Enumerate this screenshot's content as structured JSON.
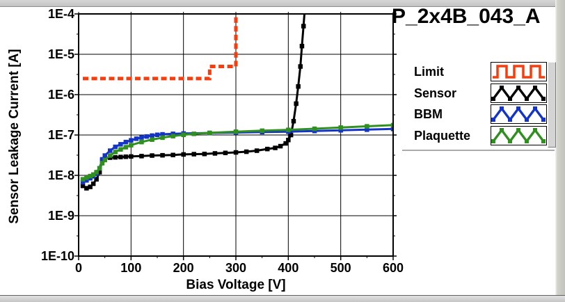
{
  "title": "P_2x4B_043_A",
  "chart_data": {
    "type": "line",
    "title": "P_2x4B_043_A",
    "xlabel": "Bias Voltage [V]",
    "ylabel": "Sensor Leakage Current [A]",
    "xlim": [
      0,
      600
    ],
    "ylog_exponents": [
      -4,
      -10
    ],
    "x_ticks": [
      "0",
      "100",
      "200",
      "300",
      "400",
      "500",
      "600"
    ],
    "y_ticks": [
      "1E-4",
      "1E-5",
      "1E-6",
      "1E-7",
      "1E-8",
      "1E-9",
      "1E-10"
    ],
    "grid": true,
    "legend_position": "right",
    "series": [
      {
        "name": "Limit",
        "color": "#f93c0c",
        "style": "dashed-step",
        "points": [
          [
            8,
            2.5e-06
          ],
          [
            250,
            2.5e-06
          ],
          [
            250,
            5e-06
          ],
          [
            300,
            5e-06
          ],
          [
            300,
            0.00011
          ]
        ]
      },
      {
        "name": "Sensor",
        "color": "#000000",
        "style": "marker-line",
        "points": [
          [
            8,
            5.5e-09
          ],
          [
            15,
            4.8e-09
          ],
          [
            22,
            5.2e-09
          ],
          [
            28,
            6.2e-09
          ],
          [
            34,
            8e-09
          ],
          [
            40,
            1.2e-08
          ],
          [
            45,
            2.3e-08
          ],
          [
            50,
            2.6e-08
          ],
          [
            60,
            2.75e-08
          ],
          [
            70,
            2.8e-08
          ],
          [
            80,
            2.85e-08
          ],
          [
            90,
            2.9e-08
          ],
          [
            100,
            2.95e-08
          ],
          [
            120,
            3e-08
          ],
          [
            140,
            3.1e-08
          ],
          [
            160,
            3.15e-08
          ],
          [
            180,
            3.2e-08
          ],
          [
            200,
            3.3e-08
          ],
          [
            220,
            3.35e-08
          ],
          [
            240,
            3.4e-08
          ],
          [
            260,
            3.5e-08
          ],
          [
            280,
            3.6e-08
          ],
          [
            300,
            3.7e-08
          ],
          [
            320,
            3.85e-08
          ],
          [
            340,
            4.1e-08
          ],
          [
            360,
            4.5e-08
          ],
          [
            375,
            4.8e-08
          ],
          [
            385,
            5.3e-08
          ],
          [
            395,
            6.2e-08
          ],
          [
            400,
            7.5e-08
          ],
          [
            405,
            1e-07
          ],
          [
            410,
            2.2e-07
          ],
          [
            415,
            6e-07
          ],
          [
            419,
            1.6e-06
          ],
          [
            423,
            5e-06
          ],
          [
            426,
            1.6e-05
          ],
          [
            429,
            5e-05
          ],
          [
            431,
            0.00011
          ]
        ]
      },
      {
        "name": "BBM",
        "color": "#1434c8",
        "style": "marker-line",
        "points": [
          [
            8,
            6.8e-09
          ],
          [
            15,
            7.5e-09
          ],
          [
            22,
            8.5e-09
          ],
          [
            28,
            9.5e-09
          ],
          [
            34,
            1.1e-08
          ],
          [
            40,
            1.5e-08
          ],
          [
            45,
            2.5e-08
          ],
          [
            50,
            3.1e-08
          ],
          [
            60,
            4.1e-08
          ],
          [
            70,
            5.1e-08
          ],
          [
            80,
            5.9e-08
          ],
          [
            90,
            6.7e-08
          ],
          [
            100,
            7.4e-08
          ],
          [
            110,
            8.1e-08
          ],
          [
            120,
            8.7e-08
          ],
          [
            130,
            9.2e-08
          ],
          [
            140,
            9.7e-08
          ],
          [
            150,
            1.01e-07
          ],
          [
            160,
            1.04e-07
          ],
          [
            180,
            1.07e-07
          ],
          [
            200,
            1.09e-07
          ],
          [
            250,
            1.12e-07
          ],
          [
            300,
            1.15e-07
          ],
          [
            350,
            1.18e-07
          ],
          [
            400,
            1.21e-07
          ],
          [
            450,
            1.26e-07
          ],
          [
            500,
            1.31e-07
          ],
          [
            550,
            1.36e-07
          ],
          [
            600,
            1.41e-07
          ]
        ]
      },
      {
        "name": "Plaquette",
        "color": "#2f8f1f",
        "style": "marker-line",
        "points": [
          [
            8,
            8e-09
          ],
          [
            15,
            8.8e-09
          ],
          [
            22,
            9.6e-09
          ],
          [
            28,
            1.05e-08
          ],
          [
            34,
            1.2e-08
          ],
          [
            40,
            1.5e-08
          ],
          [
            45,
            2e-08
          ],
          [
            50,
            2.4e-08
          ],
          [
            60,
            3.1e-08
          ],
          [
            70,
            3.8e-08
          ],
          [
            80,
            4.4e-08
          ],
          [
            90,
            5e-08
          ],
          [
            100,
            5.6e-08
          ],
          [
            120,
            6.7e-08
          ],
          [
            140,
            7.7e-08
          ],
          [
            160,
            8.6e-08
          ],
          [
            180,
            9.4e-08
          ],
          [
            200,
            1.01e-07
          ],
          [
            220,
            1.07e-07
          ],
          [
            250,
            1.13e-07
          ],
          [
            300,
            1.21e-07
          ],
          [
            350,
            1.28e-07
          ],
          [
            400,
            1.34e-07
          ],
          [
            450,
            1.43e-07
          ],
          [
            500,
            1.53e-07
          ],
          [
            550,
            1.64e-07
          ],
          [
            600,
            1.76e-07
          ]
        ]
      }
    ]
  },
  "legend": {
    "items": [
      {
        "label": "Limit",
        "icon": "square-wave-icon",
        "color": "#f93c0c"
      },
      {
        "label": "Sensor",
        "icon": "zigzag-wave-icon",
        "color": "#000000"
      },
      {
        "label": "BBM",
        "icon": "zigzag-wave-icon",
        "color": "#1434c8"
      },
      {
        "label": "Plaquette",
        "icon": "zigzag-wave-icon",
        "color": "#2f8f1f"
      }
    ]
  }
}
